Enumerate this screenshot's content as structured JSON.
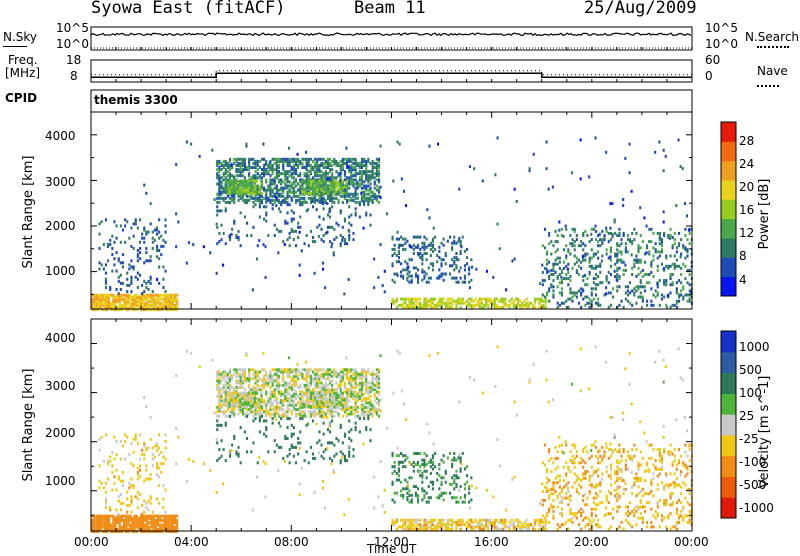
{
  "header": {
    "title": "Syowa East (fitACF)",
    "beam": "Beam 11",
    "date": "25/Aug/2009"
  },
  "nsky": {
    "label": "N.Sky",
    "left_ticks": [
      "10^5",
      "10^0"
    ],
    "right_ticks": [
      "10^5",
      "10^0"
    ],
    "right_label": "N.Search"
  },
  "freq": {
    "label_line1": "Freq.",
    "label_line2": "[MHz]",
    "left_ticks": [
      "18",
      "8"
    ],
    "right_ticks": [
      "60",
      "0"
    ],
    "right_label": "Nave"
  },
  "cpid": {
    "label": "CPID",
    "value": "themis 3300"
  },
  "time_axis": {
    "ticks": [
      "00:00",
      "04:00",
      "08:00",
      "12:00",
      "16:00",
      "20:00",
      "00:00"
    ],
    "label": "Time UT"
  },
  "range_axis": {
    "label": "Slant Range [km]",
    "ticks": [
      "1000",
      "2000",
      "3000",
      "4000"
    ]
  },
  "power_colorbar": {
    "label": "Power [dB]",
    "ticks": [
      "4",
      "8",
      "12",
      "16",
      "20",
      "24",
      "28"
    ],
    "colors": [
      "#0a14f0",
      "#1e4bb4",
      "#2d7a66",
      "#4aa84a",
      "#98cc1e",
      "#e8d21a",
      "#f0a020",
      "#f06a0f",
      "#e81a0a"
    ]
  },
  "velocity_colorbar": {
    "label": "Velocity [m s^-1]",
    "ticks": [
      "1000",
      "500",
      "100",
      "25",
      "-25",
      "-100",
      "-500",
      "-1000"
    ],
    "colors": [
      "#1432c8",
      "#2d5ca0",
      "#2d7a5a",
      "#4fb43c",
      "#c8c8c8",
      "#f0c814",
      "#f08c14",
      "#f05a0a",
      "#e01a0a"
    ]
  },
  "chart_data": {
    "type": "heatmap",
    "x_range_hours": [
      0,
      24
    ],
    "y_range_km": [
      180,
      4500
    ],
    "freq_segments": [
      {
        "start_h": 0,
        "end_h": 5,
        "mhz": 10.2
      },
      {
        "start_h": 5,
        "end_h": 18,
        "mhz": 12.0
      },
      {
        "start_h": 18,
        "end_h": 24,
        "mhz": 10.2
      }
    ],
    "echo_regions": [
      {
        "t0": 0.0,
        "t1": 3.4,
        "r0": 200,
        "r1": 550,
        "power": 24,
        "velocity": -180,
        "density": 0.9
      },
      {
        "t0": 0.3,
        "t1": 3.0,
        "r0": 550,
        "r1": 2200,
        "power": 8,
        "velocity": -50,
        "density": 0.12
      },
      {
        "t0": 5.0,
        "t1": 11.5,
        "r0": 2550,
        "r1": 3500,
        "power": 10,
        "velocity": 0,
        "density": 0.6
      },
      {
        "t0": 5.4,
        "t1": 6.8,
        "r0": 2750,
        "r1": 3050,
        "power": 16,
        "velocity": 10,
        "density": 0.8
      },
      {
        "t0": 8.4,
        "t1": 10.2,
        "r0": 2750,
        "r1": 3050,
        "power": 15,
        "velocity": 10,
        "density": 0.7
      },
      {
        "t0": 5.0,
        "t1": 11.2,
        "r0": 1600,
        "r1": 2550,
        "power": 8,
        "velocity": 200,
        "density": 0.1
      },
      {
        "t0": 12.0,
        "t1": 15.2,
        "r0": 800,
        "r1": 1800,
        "power": 8,
        "velocity": 120,
        "density": 0.22
      },
      {
        "t0": 12.0,
        "t1": 18.2,
        "r0": 250,
        "r1": 450,
        "power": 20,
        "velocity": -60,
        "density": 0.6
      },
      {
        "t0": 18.0,
        "t1": 24.0,
        "r0": 250,
        "r1": 2000,
        "power": 10,
        "velocity": -80,
        "density": 0.2
      },
      {
        "t0": 2.0,
        "t1": 24.0,
        "r0": 500,
        "r1": 4000,
        "power": 6,
        "velocity": -30,
        "density": 0.01
      }
    ]
  }
}
